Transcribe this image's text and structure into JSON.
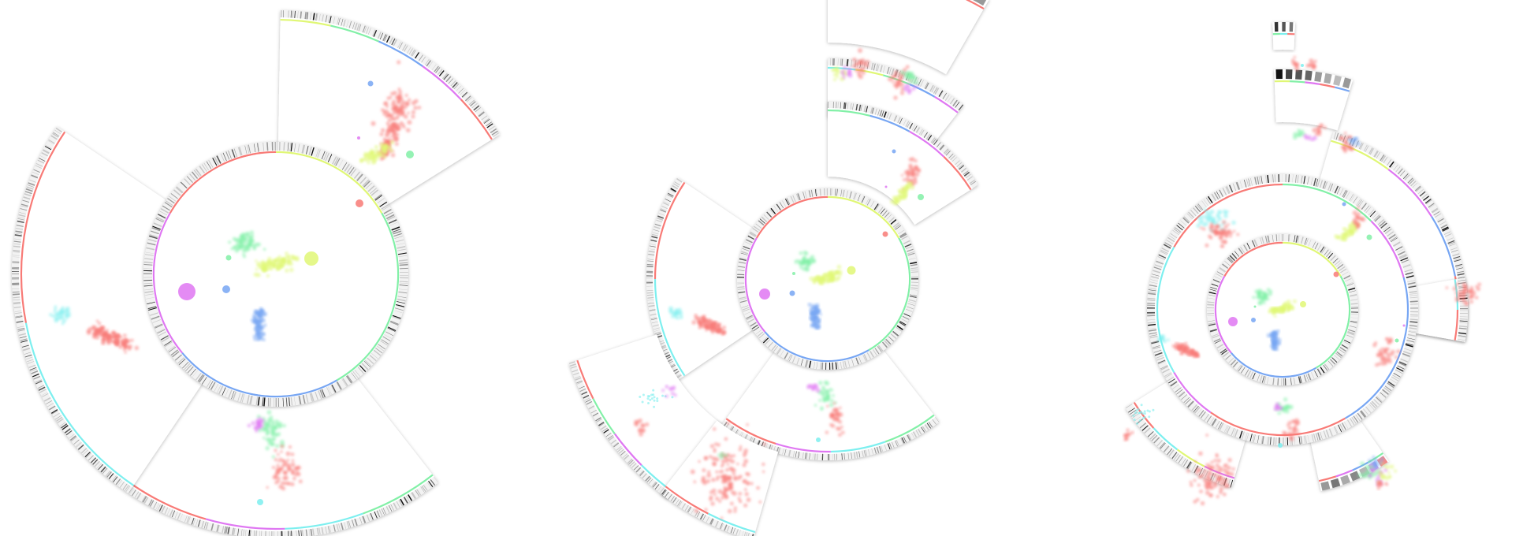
{
  "colors": {
    "red": "#f87a76",
    "yellow": "#e0f775",
    "green": "#82f0a7",
    "blue": "#77a6f3",
    "purple": "#df77f2",
    "cyan": "#7defef",
    "panel_shadow": "#d4d4d4",
    "barcode_dark": "#111111"
  },
  "figures": [
    {
      "name": "radial-fig-1",
      "center": "f1",
      "rings": [
        {
          "r": 155,
          "colors": [
            "red",
            "yellow",
            "green",
            "blue",
            "purple"
          ],
          "dense": false
        }
      ],
      "sectors": [
        {
          "r0": 0,
          "r1": 155,
          "a0": 0,
          "a1": 360,
          "ring": "yellow-green-blue-purple-red"
        },
        {
          "r0": 170,
          "r1": 320,
          "a0": 0,
          "a1": 56,
          "colors": [
            "yellow",
            "green",
            "blue",
            "purple",
            "red"
          ]
        },
        {
          "r0": 170,
          "r1": 320,
          "a0": 144,
          "a1": 212,
          "colors": [
            "green",
            "cyan",
            "purple",
            "red"
          ]
        },
        {
          "r0": 170,
          "r1": 320,
          "a0": 212,
          "a1": 332,
          "colors": [
            "cyan",
            "red"
          ]
        }
      ]
    },
    {
      "name": "radial-fig-2",
      "center": "f2"
    },
    {
      "name": "radial-fig-3",
      "center": "f3"
    }
  ]
}
